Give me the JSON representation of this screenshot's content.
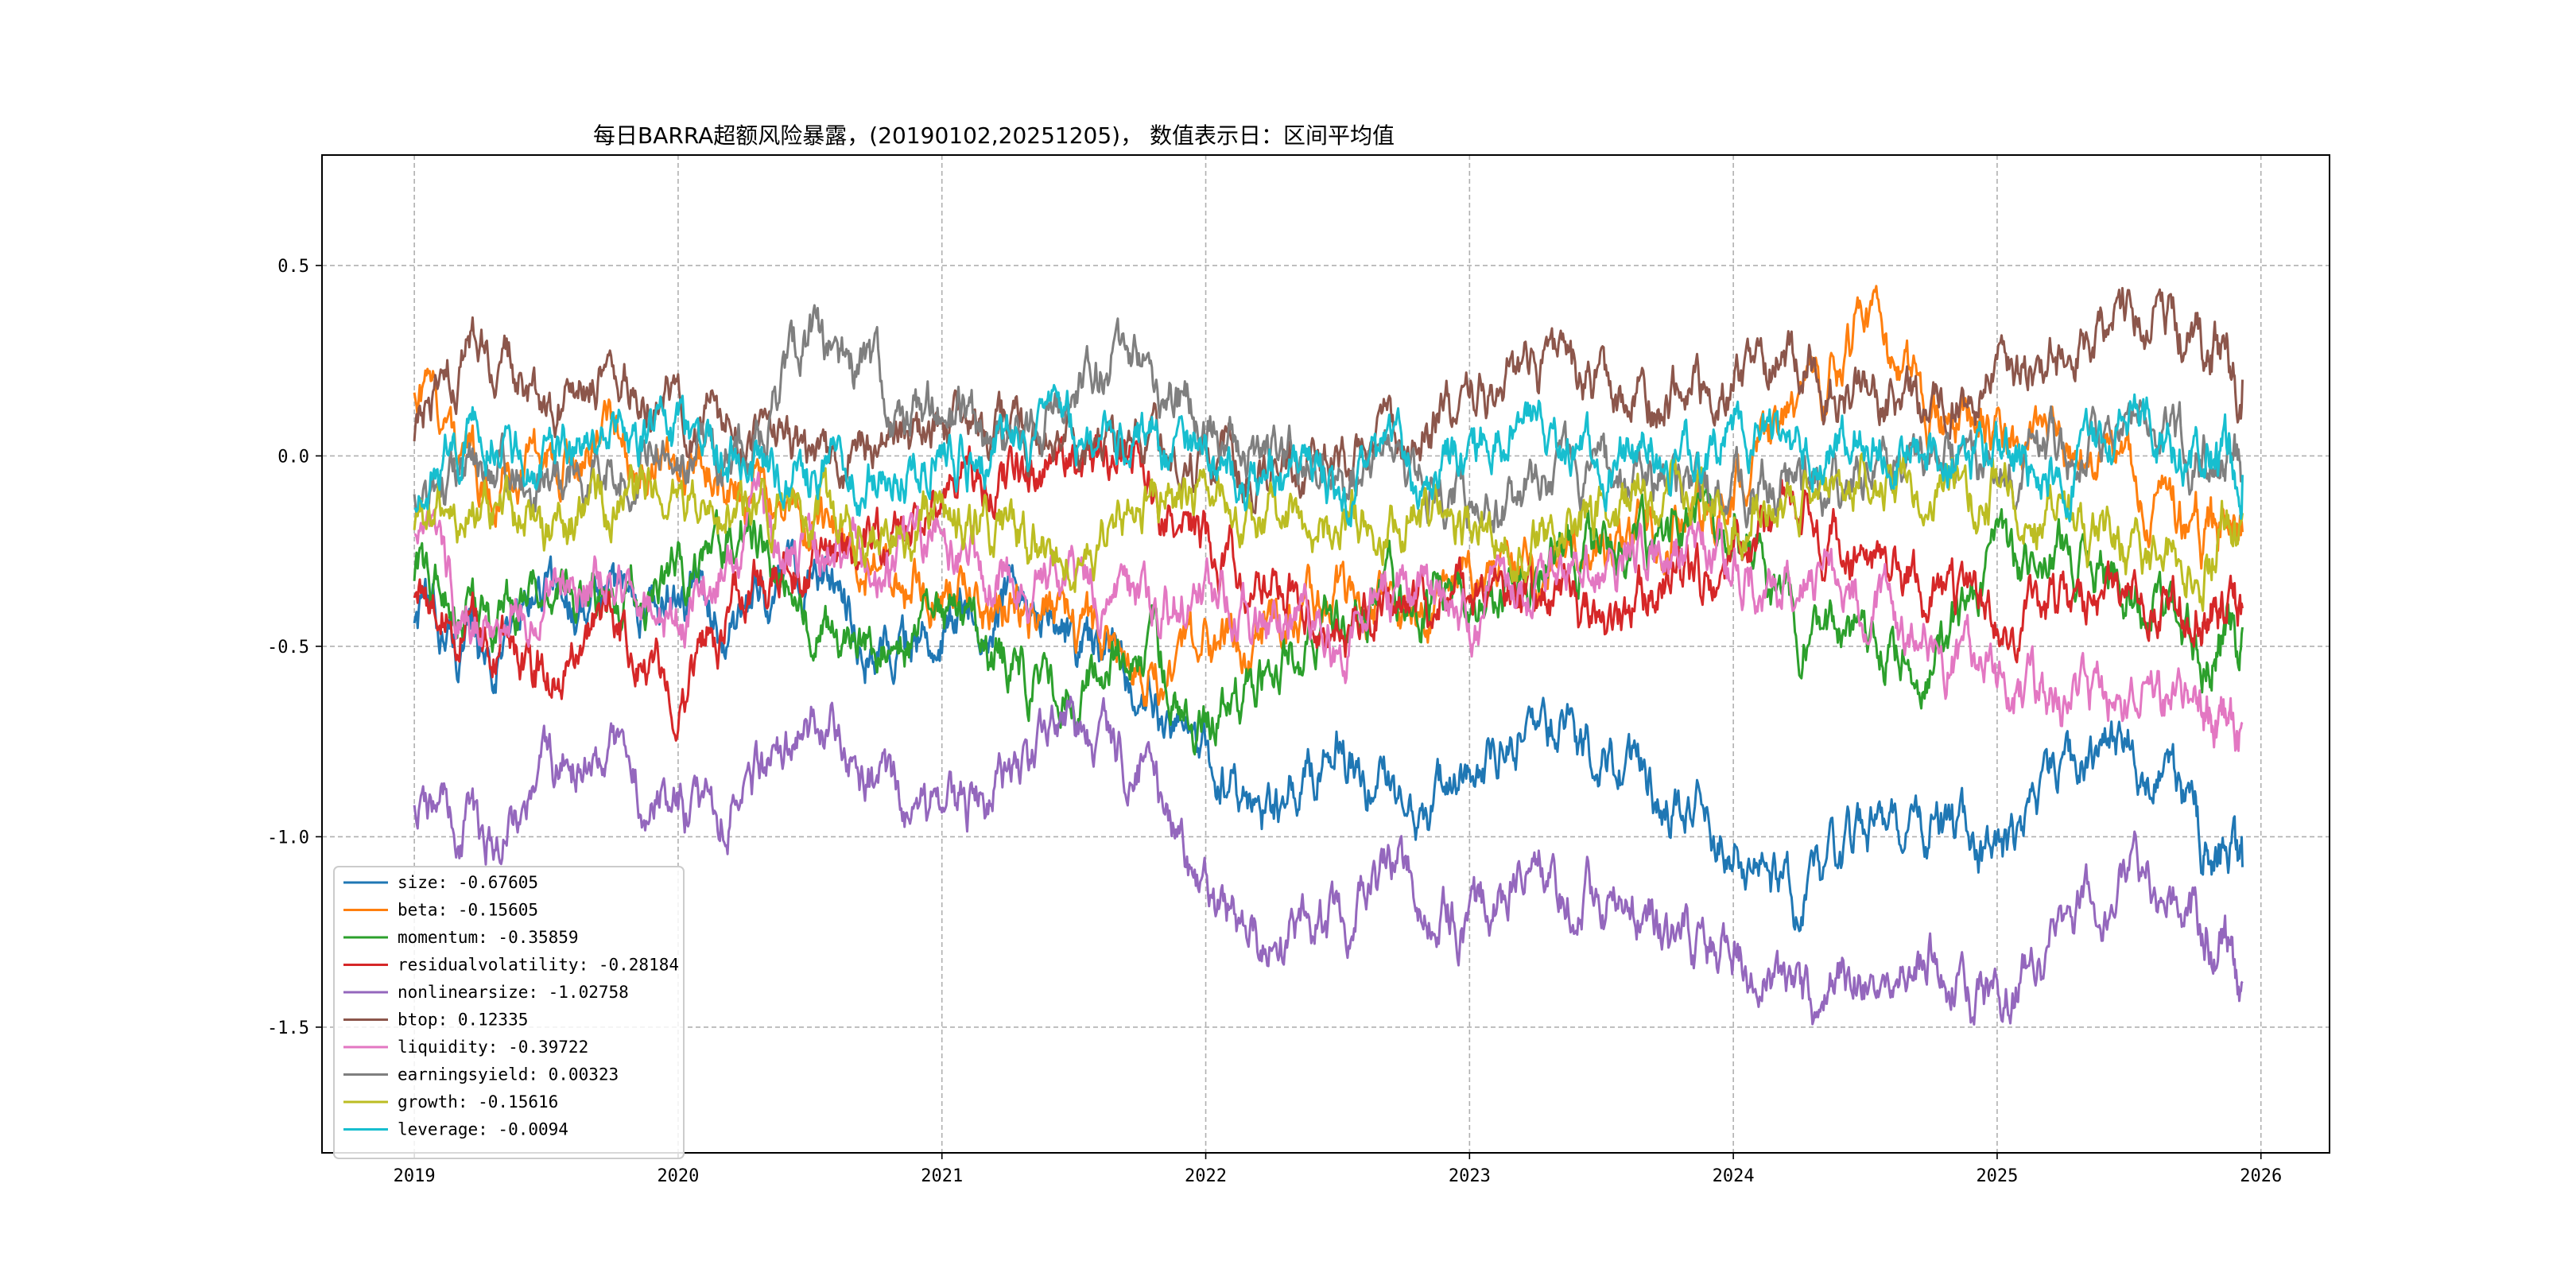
{
  "chart_data": {
    "type": "line",
    "title": "每日BARRA超额风险暴露，(20190102,20251205)， 数值表示日：区间平均值",
    "xlabel": "",
    "ylabel": "",
    "x_start": "2019-01-02",
    "x_end": "2025-12-05",
    "xlim": [
      2018.65,
      2026.26
    ],
    "ylim": [
      -1.83,
      0.79
    ],
    "x_ticks": [
      2019,
      2020,
      2021,
      2022,
      2023,
      2024,
      2025,
      2026
    ],
    "x_tick_labels": [
      "2019",
      "2020",
      "2021",
      "2022",
      "2023",
      "2024",
      "2025",
      "2026"
    ],
    "y_ticks": [
      0.5,
      0.0,
      -0.5,
      -1.0,
      -1.5
    ],
    "y_tick_labels": [
      "0.5",
      "0.0",
      "-0.5",
      "-1.0",
      "-1.5"
    ],
    "grid": true,
    "legend_position": "lower-left",
    "series": [
      {
        "name": "size",
        "legend_label": "size: -0.67605",
        "color": "#1f77b4",
        "x": [
          2019.0,
          2019.25,
          2019.5,
          2019.75,
          2020.0,
          2020.25,
          2020.5,
          2020.75,
          2021.0,
          2021.25,
          2021.5,
          2021.75,
          2022.0,
          2022.25,
          2022.5,
          2022.75,
          2023.0,
          2023.25,
          2023.5,
          2023.75,
          2024.0,
          2024.25,
          2024.5,
          2024.75,
          2025.0,
          2025.25,
          2025.5,
          2025.75,
          2025.93
        ],
        "values": [
          -0.4,
          -0.55,
          -0.35,
          -0.4,
          -0.35,
          -0.45,
          -0.3,
          -0.5,
          -0.45,
          -0.35,
          -0.5,
          -0.6,
          -0.8,
          -0.95,
          -0.75,
          -0.95,
          -0.85,
          -0.7,
          -0.8,
          -0.9,
          -1.0,
          -1.2,
          -1.0,
          -0.95,
          -1.1,
          -0.85,
          -0.75,
          -0.95,
          -1.08
        ]
      },
      {
        "name": "beta",
        "legend_label": "beta: -0.15605",
        "color": "#ff7f0e",
        "x": [
          2019.0,
          2019.25,
          2019.5,
          2019.75,
          2020.0,
          2020.25,
          2020.5,
          2020.75,
          2021.0,
          2021.25,
          2021.5,
          2021.75,
          2022.0,
          2022.25,
          2022.5,
          2022.75,
          2023.0,
          2023.25,
          2023.5,
          2023.75,
          2024.0,
          2024.25,
          2024.5,
          2024.75,
          2025.0,
          2025.25,
          2025.5,
          2025.75,
          2025.93
        ],
        "values": [
          0.2,
          -0.05,
          0.0,
          0.05,
          0.0,
          -0.1,
          -0.2,
          -0.3,
          -0.35,
          -0.4,
          -0.45,
          -0.6,
          -0.5,
          -0.45,
          -0.35,
          -0.45,
          -0.3,
          -0.35,
          -0.25,
          -0.2,
          -0.1,
          0.1,
          0.35,
          0.1,
          0.05,
          0.0,
          -0.05,
          -0.2,
          -0.2
        ]
      },
      {
        "name": "momentum",
        "legend_label": "momentum: -0.35859",
        "color": "#2ca02c",
        "x": [
          2019.0,
          2019.25,
          2019.5,
          2019.75,
          2020.0,
          2020.25,
          2020.5,
          2020.75,
          2021.0,
          2021.25,
          2021.5,
          2021.75,
          2022.0,
          2022.25,
          2022.5,
          2022.75,
          2023.0,
          2023.25,
          2023.5,
          2023.75,
          2024.0,
          2024.25,
          2024.5,
          2024.75,
          2025.0,
          2025.25,
          2025.5,
          2025.75,
          2025.93
        ],
        "values": [
          -0.3,
          -0.45,
          -0.35,
          -0.4,
          -0.3,
          -0.2,
          -0.45,
          -0.5,
          -0.45,
          -0.55,
          -0.6,
          -0.5,
          -0.7,
          -0.55,
          -0.45,
          -0.35,
          -0.4,
          -0.3,
          -0.25,
          -0.2,
          -0.15,
          -0.45,
          -0.5,
          -0.55,
          -0.3,
          -0.25,
          -0.35,
          -0.5,
          -0.45
        ]
      },
      {
        "name": "residualvolatility",
        "legend_label": "residualvolatility: -0.28184",
        "color": "#d62728",
        "x": [
          2019.0,
          2019.25,
          2019.5,
          2019.75,
          2020.0,
          2020.25,
          2020.5,
          2020.75,
          2021.0,
          2021.25,
          2021.5,
          2021.75,
          2022.0,
          2022.25,
          2022.5,
          2022.75,
          2023.0,
          2023.25,
          2023.5,
          2023.75,
          2024.0,
          2024.25,
          2024.5,
          2024.75,
          2025.0,
          2025.25,
          2025.5,
          2025.75,
          2025.93
        ],
        "values": [
          -0.35,
          -0.45,
          -0.55,
          -0.4,
          -0.6,
          -0.35,
          -0.3,
          -0.25,
          -0.1,
          -0.05,
          0.0,
          -0.05,
          -0.2,
          -0.35,
          -0.45,
          -0.4,
          -0.35,
          -0.4,
          -0.45,
          -0.35,
          -0.3,
          -0.15,
          -0.3,
          -0.35,
          -0.45,
          -0.4,
          -0.35,
          -0.4,
          -0.4
        ]
      },
      {
        "name": "nonlinearsize",
        "legend_label": "nonlinearsize: -1.02758",
        "color": "#9467bd",
        "x": [
          2019.0,
          2019.25,
          2019.5,
          2019.75,
          2020.0,
          2020.25,
          2020.5,
          2020.75,
          2021.0,
          2021.25,
          2021.5,
          2021.75,
          2022.0,
          2022.25,
          2022.5,
          2022.75,
          2023.0,
          2023.25,
          2023.5,
          2023.75,
          2024.0,
          2024.25,
          2024.5,
          2024.75,
          2025.0,
          2025.25,
          2025.5,
          2025.75,
          2025.93
        ],
        "values": [
          -0.9,
          -1.0,
          -0.85,
          -0.8,
          -0.95,
          -0.9,
          -0.7,
          -0.85,
          -0.95,
          -0.85,
          -0.75,
          -0.8,
          -1.15,
          -1.3,
          -1.2,
          -1.1,
          -1.25,
          -1.1,
          -1.15,
          -1.25,
          -1.3,
          -1.45,
          -1.35,
          -1.3,
          -1.45,
          -1.25,
          -1.1,
          -1.2,
          -1.38
        ]
      },
      {
        "name": "btop",
        "legend_label": "btop: 0.12335",
        "color": "#8c564b",
        "x": [
          2019.0,
          2019.25,
          2019.5,
          2019.75,
          2020.0,
          2020.25,
          2020.5,
          2020.75,
          2021.0,
          2021.25,
          2021.5,
          2021.75,
          2022.0,
          2022.25,
          2022.5,
          2022.75,
          2023.0,
          2023.25,
          2023.5,
          2023.75,
          2024.0,
          2024.25,
          2024.5,
          2024.75,
          2025.0,
          2025.25,
          2025.5,
          2025.75,
          2025.93
        ],
        "values": [
          0.05,
          0.3,
          0.15,
          0.2,
          0.15,
          0.05,
          0.0,
          0.0,
          0.05,
          0.05,
          0.05,
          0.0,
          0.0,
          0.0,
          0.0,
          0.05,
          0.15,
          0.2,
          0.2,
          0.15,
          0.2,
          0.25,
          0.15,
          0.1,
          0.2,
          0.25,
          0.4,
          0.3,
          0.2
        ]
      },
      {
        "name": "liquidity",
        "legend_label": "liquidity: -0.39722",
        "color": "#e377c2",
        "x": [
          2019.0,
          2019.25,
          2019.5,
          2019.75,
          2020.0,
          2020.25,
          2020.5,
          2020.75,
          2021.0,
          2021.25,
          2021.5,
          2021.75,
          2022.0,
          2022.25,
          2022.5,
          2022.75,
          2023.0,
          2023.25,
          2023.5,
          2023.75,
          2024.0,
          2024.25,
          2024.5,
          2024.75,
          2025.0,
          2025.25,
          2025.5,
          2025.75,
          2025.93
        ],
        "values": [
          -0.2,
          -0.45,
          -0.35,
          -0.3,
          -0.45,
          -0.2,
          -0.25,
          -0.3,
          -0.25,
          -0.3,
          -0.35,
          -0.4,
          -0.35,
          -0.45,
          -0.5,
          -0.35,
          -0.4,
          -0.35,
          -0.3,
          -0.25,
          -0.3,
          -0.35,
          -0.4,
          -0.5,
          -0.6,
          -0.65,
          -0.6,
          -0.7,
          -0.7
        ]
      },
      {
        "name": "earningsyield",
        "legend_label": "earningsyield: 0.00323",
        "color": "#7f7f7f",
        "x": [
          2019.0,
          2019.25,
          2019.5,
          2019.75,
          2020.0,
          2020.25,
          2020.5,
          2020.75,
          2021.0,
          2021.25,
          2021.5,
          2021.75,
          2022.0,
          2022.25,
          2022.5,
          2022.75,
          2023.0,
          2023.25,
          2023.5,
          2023.75,
          2024.0,
          2024.25,
          2024.5,
          2024.75,
          2025.0,
          2025.25,
          2025.5,
          2025.75,
          2025.93
        ],
        "values": [
          -0.1,
          -0.05,
          -0.05,
          0.0,
          0.05,
          0.0,
          0.3,
          0.2,
          0.1,
          0.05,
          0.2,
          0.25,
          0.1,
          0.0,
          -0.05,
          -0.05,
          -0.1,
          -0.1,
          -0.05,
          -0.1,
          -0.05,
          -0.1,
          -0.05,
          0.0,
          -0.05,
          0.0,
          0.1,
          0.0,
          -0.05
        ]
      },
      {
        "name": "growth",
        "legend_label": "growth: -0.15616",
        "color": "#bcbd22",
        "x": [
          2019.0,
          2019.25,
          2019.5,
          2019.75,
          2020.0,
          2020.25,
          2020.5,
          2020.75,
          2021.0,
          2021.25,
          2021.5,
          2021.75,
          2022.0,
          2022.25,
          2022.5,
          2022.75,
          2023.0,
          2023.25,
          2023.5,
          2023.75,
          2024.0,
          2024.25,
          2024.5,
          2024.75,
          2025.0,
          2025.25,
          2025.5,
          2025.75,
          2025.93
        ],
        "values": [
          -0.2,
          -0.15,
          -0.2,
          -0.15,
          -0.1,
          -0.15,
          -0.15,
          -0.2,
          -0.15,
          -0.2,
          -0.25,
          -0.15,
          -0.1,
          -0.15,
          -0.2,
          -0.15,
          -0.2,
          -0.2,
          -0.15,
          -0.1,
          -0.15,
          -0.1,
          -0.05,
          -0.1,
          -0.1,
          -0.15,
          -0.25,
          -0.3,
          -0.15
        ]
      },
      {
        "name": "leverage",
        "legend_label": "leverage: -0.0094",
        "color": "#17becf",
        "x": [
          2019.0,
          2019.25,
          2019.5,
          2019.75,
          2020.0,
          2020.25,
          2020.5,
          2020.75,
          2021.0,
          2021.25,
          2021.5,
          2021.75,
          2022.0,
          2022.25,
          2022.5,
          2022.75,
          2023.0,
          2023.25,
          2023.5,
          2023.75,
          2024.0,
          2024.25,
          2024.5,
          2024.75,
          2025.0,
          2025.25,
          2025.5,
          2025.75,
          2025.93
        ],
        "values": [
          -0.15,
          0.1,
          0.0,
          0.05,
          0.05,
          -0.05,
          -0.05,
          -0.05,
          0.0,
          0.0,
          0.05,
          0.05,
          0.0,
          -0.05,
          -0.05,
          -0.05,
          0.0,
          0.05,
          0.0,
          0.0,
          0.05,
          0.0,
          0.05,
          0.0,
          0.0,
          -0.05,
          0.1,
          0.0,
          -0.05
        ]
      }
    ]
  }
}
